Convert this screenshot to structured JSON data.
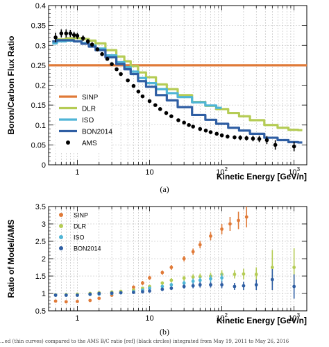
{
  "colors": {
    "SINP": "#e07a38",
    "DLR": "#b5cc55",
    "ISO": "#4fb5d6",
    "BON2014": "#2f5ea3",
    "AMS": "#000000"
  },
  "panel_labels": [
    "(a)",
    "(b)"
  ],
  "caption": "...ed (thin curves) compared to the AMS B/C ratio [ref] (black circles) integrated from May 19, 2011 to May 26, 2016",
  "chart_data": [
    {
      "type": "line",
      "xlabel": "Kinetic Energy [GeV/n]",
      "ylabel": "Boron/Carbon Flux Ratio",
      "xscale": "log",
      "xlim": [
        0.4,
        1500
      ],
      "ylim": [
        0,
        0.4
      ],
      "yticks": [
        "0",
        "0.05",
        "0.1",
        "0.15",
        "0.2",
        "0.25",
        "0.3",
        "0.35",
        "0.4"
      ],
      "xticks": [
        "1",
        "10",
        "10²",
        "10³"
      ],
      "grid": true,
      "legend_position": "lower-left",
      "series": [
        {
          "name": "SINP",
          "x": [
            0.4,
            1500
          ],
          "y": [
            0.25,
            0.25
          ]
        },
        {
          "name": "DLR",
          "x": [
            0.45,
            0.6,
            0.8,
            1.0,
            1.3,
            1.6,
            2,
            3,
            4,
            5,
            6,
            8,
            10,
            15,
            20,
            30,
            50,
            70,
            100,
            150,
            200,
            300,
            500,
            700,
            1000,
            1300
          ],
          "y": [
            0.31,
            0.315,
            0.318,
            0.318,
            0.316,
            0.312,
            0.305,
            0.288,
            0.272,
            0.26,
            0.248,
            0.232,
            0.22,
            0.202,
            0.19,
            0.175,
            0.158,
            0.148,
            0.14,
            0.13,
            0.122,
            0.112,
            0.1,
            0.093,
            0.088,
            0.087
          ]
        },
        {
          "name": "ISO",
          "x": [
            0.45,
            0.6,
            0.8,
            1.0,
            1.3,
            1.6,
            2,
            3,
            4,
            5,
            6,
            8,
            10,
            15,
            20,
            30,
            50,
            70,
            100
          ],
          "y": [
            0.305,
            0.31,
            0.312,
            0.31,
            0.306,
            0.3,
            0.292,
            0.275,
            0.258,
            0.245,
            0.234,
            0.218,
            0.205,
            0.19,
            0.18,
            0.17,
            0.157,
            0.149,
            0.143
          ]
        },
        {
          "name": "BON2014",
          "x": [
            0.45,
            0.6,
            0.8,
            1.0,
            1.3,
            1.6,
            2,
            3,
            4,
            5,
            6,
            8,
            10,
            15,
            20,
            30,
            50,
            70,
            100,
            150,
            200,
            300,
            500,
            700,
            1000,
            1300
          ],
          "y": [
            0.31,
            0.313,
            0.313,
            0.31,
            0.304,
            0.297,
            0.288,
            0.27,
            0.253,
            0.24,
            0.228,
            0.21,
            0.196,
            0.175,
            0.162,
            0.145,
            0.125,
            0.113,
            0.103,
            0.093,
            0.086,
            0.078,
            0.068,
            0.062,
            0.057,
            0.056
          ]
        },
        {
          "name": "AMS",
          "style": "points",
          "x": [
            0.5,
            0.6,
            0.7,
            0.8,
            0.9,
            1.0,
            1.2,
            1.4,
            1.6,
            1.9,
            2.2,
            2.6,
            3,
            3.5,
            4,
            5,
            6,
            7,
            8,
            10,
            12,
            14,
            17,
            20,
            25,
            30,
            35,
            40,
            50,
            60,
            70,
            85,
            100,
            120,
            150,
            180,
            220,
            270,
            330,
            420,
            550,
            1000
          ],
          "y": [
            0.32,
            0.33,
            0.33,
            0.33,
            0.326,
            0.324,
            0.318,
            0.31,
            0.302,
            0.29,
            0.278,
            0.266,
            0.253,
            0.24,
            0.228,
            0.212,
            0.198,
            0.184,
            0.172,
            0.16,
            0.15,
            0.14,
            0.13,
            0.122,
            0.112,
            0.106,
            0.1,
            0.096,
            0.09,
            0.086,
            0.082,
            0.078,
            0.074,
            0.071,
            0.069,
            0.068,
            0.067,
            0.066,
            0.065,
            0.062,
            0.05,
            0.046
          ],
          "err": [
            0.012,
            0.01,
            0.01,
            0.009,
            0.008,
            0.008,
            0.007,
            0.006,
            0.006,
            0.005,
            0.005,
            0.004,
            0.004,
            0.004,
            0.004,
            0.004,
            0.004,
            0.004,
            0.004,
            0.004,
            0.004,
            0.004,
            0.004,
            0.004,
            0.004,
            0.004,
            0.004,
            0.004,
            0.004,
            0.004,
            0.004,
            0.004,
            0.005,
            0.005,
            0.005,
            0.006,
            0.006,
            0.007,
            0.008,
            0.01,
            0.012,
            0.012
          ]
        }
      ],
      "panel_label": "(a)"
    },
    {
      "type": "scatter",
      "xlabel": "Kinetic Energy [GeV/n]",
      "ylabel": "Ratio of Model/AMS",
      "xscale": "log",
      "xlim": [
        0.4,
        1500
      ],
      "ylim": [
        0.5,
        3.5
      ],
      "yticks": [
        "0.5",
        "1",
        "1.5",
        "2",
        "2.5",
        "3",
        "3.5"
      ],
      "xticks": [
        "1",
        "10",
        "10²",
        "10³"
      ],
      "grid": true,
      "legend_position": "top-left",
      "series": [
        {
          "name": "SINP",
          "x": [
            0.5,
            0.7,
            1,
            1.5,
            2,
            3,
            4,
            6,
            8,
            10,
            15,
            20,
            30,
            40,
            50,
            70,
            100,
            130,
            170,
            220
          ],
          "y": [
            0.78,
            0.76,
            0.77,
            0.8,
            0.86,
            0.95,
            1.04,
            1.18,
            1.3,
            1.45,
            1.6,
            1.75,
            2.0,
            2.2,
            2.4,
            2.65,
            2.85,
            3.0,
            3.1,
            3.2
          ],
          "err": [
            0.03,
            0.03,
            0.03,
            0.03,
            0.03,
            0.04,
            0.04,
            0.05,
            0.06,
            0.06,
            0.06,
            0.07,
            0.08,
            0.09,
            0.1,
            0.12,
            0.15,
            0.2,
            0.25,
            0.3
          ]
        },
        {
          "name": "DLR",
          "x": [
            0.5,
            0.7,
            1,
            1.5,
            2,
            3,
            4,
            6,
            8,
            10,
            15,
            20,
            30,
            40,
            50,
            70,
            100,
            150,
            200,
            300,
            500,
            1000
          ],
          "y": [
            0.96,
            0.97,
            0.98,
            1.0,
            1.02,
            1.04,
            1.06,
            1.1,
            1.15,
            1.2,
            1.3,
            1.38,
            1.44,
            1.47,
            1.48,
            1.5,
            1.55,
            1.55,
            1.56,
            1.55,
            1.75,
            1.75
          ],
          "err": [
            0.03,
            0.03,
            0.03,
            0.03,
            0.03,
            0.03,
            0.03,
            0.04,
            0.04,
            0.05,
            0.05,
            0.06,
            0.07,
            0.08,
            0.09,
            0.1,
            0.12,
            0.12,
            0.15,
            0.2,
            0.5,
            0.55
          ]
        },
        {
          "name": "ISO",
          "x": [
            0.5,
            0.7,
            1,
            1.5,
            2,
            3,
            4,
            6,
            8,
            10,
            15,
            20,
            30,
            40,
            50,
            70,
            100
          ],
          "y": [
            0.95,
            0.95,
            0.95,
            0.97,
            0.98,
            1.0,
            1.02,
            1.05,
            1.1,
            1.15,
            1.2,
            1.25,
            1.3,
            1.35,
            1.38,
            1.42,
            1.45
          ],
          "err": [
            0.03,
            0.03,
            0.03,
            0.03,
            0.03,
            0.03,
            0.03,
            0.04,
            0.04,
            0.05,
            0.05,
            0.06,
            0.07,
            0.08,
            0.09,
            0.1,
            0.12
          ]
        },
        {
          "name": "BON2014",
          "x": [
            0.5,
            0.7,
            1,
            1.5,
            2,
            3,
            4,
            6,
            8,
            10,
            15,
            20,
            30,
            40,
            50,
            70,
            100,
            150,
            200,
            300,
            500,
            1000
          ],
          "y": [
            0.95,
            0.95,
            0.95,
            0.98,
            1.0,
            1.01,
            1.02,
            1.03,
            1.05,
            1.07,
            1.12,
            1.15,
            1.2,
            1.22,
            1.25,
            1.25,
            1.25,
            1.2,
            1.22,
            1.25,
            1.4,
            1.2
          ],
          "err": [
            0.03,
            0.03,
            0.03,
            0.03,
            0.03,
            0.03,
            0.03,
            0.04,
            0.04,
            0.04,
            0.05,
            0.05,
            0.06,
            0.07,
            0.08,
            0.08,
            0.1,
            0.1,
            0.12,
            0.15,
            0.3,
            0.35
          ]
        }
      ],
      "panel_label": "(b)"
    }
  ]
}
